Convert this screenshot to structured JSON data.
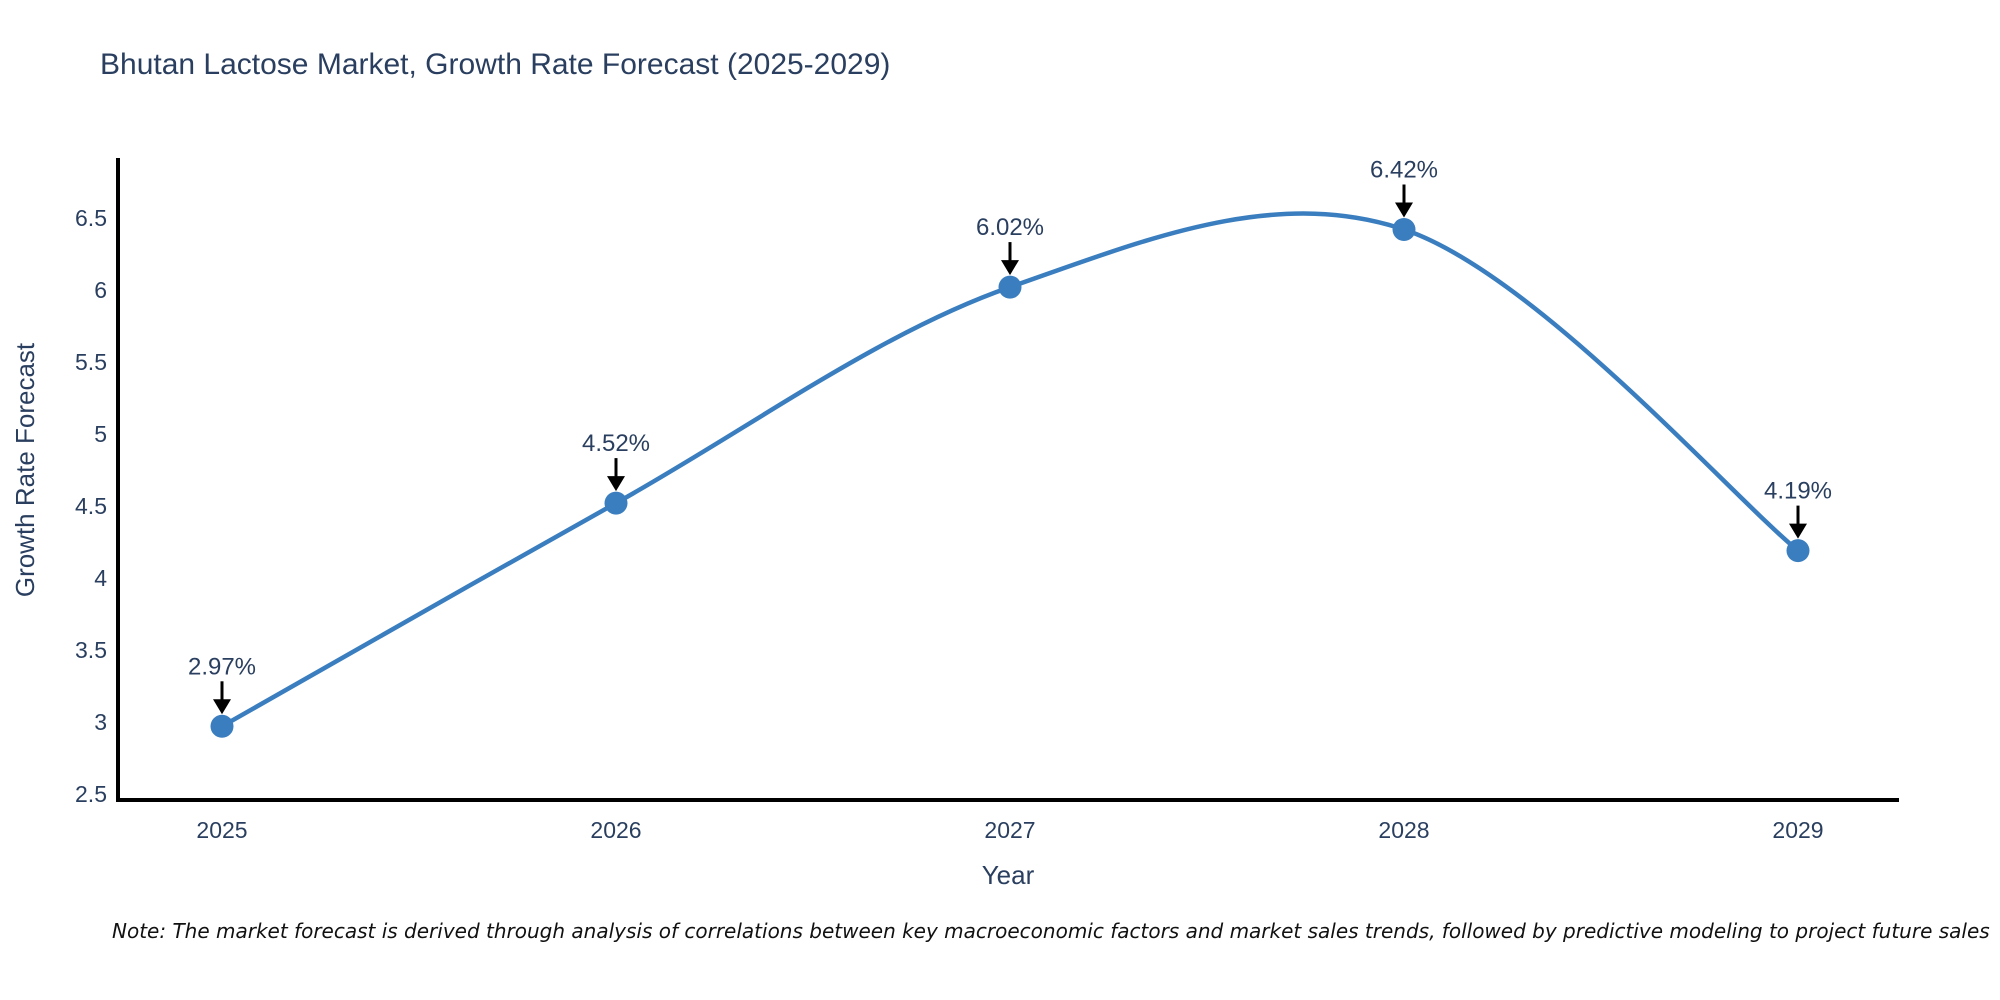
{
  "page": {
    "note": "Note: The market forecast is derived through analysis of correlations between key macroeconomic factors and market sales trends, followed by predictive modeling to project future sales"
  },
  "colors": {
    "background": "#ffffff",
    "series": "#3a7ebf",
    "text": "#2a3f5f",
    "axis": "#000000",
    "arrow": "#000000",
    "note_text": "#111111"
  },
  "chart_data": {
    "type": "line",
    "title": "Bhutan Lactose Market, Growth Rate Forecast (2025-2029)",
    "xlabel": "Year",
    "ylabel": "Growth Rate Forecast",
    "x": [
      2025,
      2026,
      2027,
      2028,
      2029
    ],
    "y": [
      2.97,
      4.52,
      6.02,
      6.42,
      4.19
    ],
    "point_labels": [
      "2.97%",
      "4.52%",
      "6.02%",
      "6.42%",
      "4.19%"
    ],
    "series_name": "Growth Rate Forecast",
    "line_shape": "spline",
    "marker": "circle",
    "annotation_arrows": true,
    "xticks": [
      "2025",
      "2026",
      "2027",
      "2028",
      "2029"
    ],
    "yticks": [
      2.5,
      3,
      3.5,
      4,
      4.5,
      5,
      5.5,
      6,
      6.5
    ],
    "ylim": [
      2.46,
      6.9
    ],
    "grid": false,
    "legend": false
  }
}
